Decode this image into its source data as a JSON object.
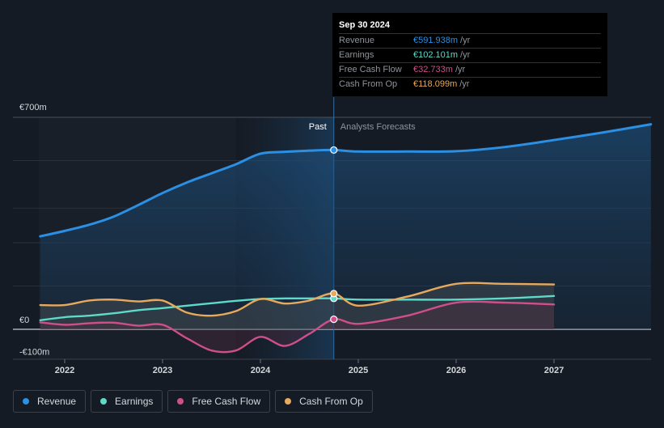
{
  "colors": {
    "revenue": "#2b8fe3",
    "earnings": "#5ddac8",
    "free_cash_flow": "#cf4f8a",
    "cash_from_op": "#e8a95c",
    "background": "#151b24"
  },
  "chart_data": {
    "type": "line",
    "title": "",
    "xlabel": "",
    "ylabel": "",
    "ylim": [
      -100,
      700
    ],
    "y_tick_labels": [
      "€700m",
      "€0",
      "-€100m"
    ],
    "x_tick_labels": [
      "2022",
      "2023",
      "2024",
      "2025",
      "2026",
      "2027"
    ],
    "x_ticks": [
      2022,
      2023,
      2024,
      2025,
      2026,
      2027
    ],
    "xlim": [
      2021.5,
      2027.99
    ],
    "past_label": "Past",
    "forecast_label": "Analysts Forecasts",
    "divider_x": 2024.75,
    "shade_start_x": 2023.75,
    "series": [
      {
        "name": "Revenue",
        "points": [
          [
            2021.75,
            307
          ],
          [
            2022.0,
            325
          ],
          [
            2022.25,
            345
          ],
          [
            2022.5,
            372
          ],
          [
            2022.75,
            410
          ],
          [
            2023.0,
            450
          ],
          [
            2023.25,
            485
          ],
          [
            2023.5,
            515
          ],
          [
            2023.75,
            545
          ],
          [
            2024.0,
            580
          ],
          [
            2024.25,
            586
          ],
          [
            2024.5,
            590
          ],
          [
            2024.75,
            592
          ],
          [
            2025.0,
            587
          ],
          [
            2025.5,
            587
          ],
          [
            2026.0,
            588
          ],
          [
            2026.5,
            602
          ],
          [
            2027.0,
            625
          ],
          [
            2027.5,
            650
          ],
          [
            2027.99,
            677
          ]
        ]
      },
      {
        "name": "Earnings",
        "points": [
          [
            2021.75,
            30
          ],
          [
            2022.0,
            40
          ],
          [
            2022.25,
            45
          ],
          [
            2022.5,
            53
          ],
          [
            2022.75,
            63
          ],
          [
            2023.0,
            70
          ],
          [
            2023.25,
            78
          ],
          [
            2023.5,
            86
          ],
          [
            2023.75,
            94
          ],
          [
            2024.0,
            100
          ],
          [
            2024.25,
            102
          ],
          [
            2024.5,
            102
          ],
          [
            2024.75,
            102
          ],
          [
            2025.0,
            98
          ],
          [
            2025.5,
            98
          ],
          [
            2026.0,
            98
          ],
          [
            2026.5,
            102
          ],
          [
            2027.0,
            110
          ]
        ]
      },
      {
        "name": "Free Cash Flow",
        "points": [
          [
            2021.75,
            23
          ],
          [
            2022.0,
            15
          ],
          [
            2022.25,
            20
          ],
          [
            2022.5,
            22
          ],
          [
            2022.75,
            12
          ],
          [
            2023.0,
            15
          ],
          [
            2023.25,
            -30
          ],
          [
            2023.5,
            -70
          ],
          [
            2023.75,
            -70
          ],
          [
            2024.0,
            -25
          ],
          [
            2024.25,
            -55
          ],
          [
            2024.5,
            -15
          ],
          [
            2024.75,
            33
          ],
          [
            2025.0,
            18
          ],
          [
            2025.5,
            45
          ],
          [
            2026.0,
            88
          ],
          [
            2026.5,
            88
          ],
          [
            2027.0,
            82
          ]
        ]
      },
      {
        "name": "Cash From Op",
        "points": [
          [
            2021.75,
            80
          ],
          [
            2022.0,
            80
          ],
          [
            2022.25,
            95
          ],
          [
            2022.5,
            98
          ],
          [
            2022.75,
            92
          ],
          [
            2023.0,
            95
          ],
          [
            2023.25,
            55
          ],
          [
            2023.5,
            45
          ],
          [
            2023.75,
            60
          ],
          [
            2024.0,
            100
          ],
          [
            2024.25,
            85
          ],
          [
            2024.5,
            95
          ],
          [
            2024.75,
            118
          ],
          [
            2025.0,
            78
          ],
          [
            2025.5,
            108
          ],
          [
            2026.0,
            150
          ],
          [
            2026.5,
            150
          ],
          [
            2027.0,
            148
          ]
        ]
      }
    ],
    "markers": [
      {
        "series": "Revenue",
        "x": 2024.75,
        "y": 592
      },
      {
        "series": "Earnings",
        "x": 2024.75,
        "y": 102
      },
      {
        "series": "Free Cash Flow",
        "x": 2024.75,
        "y": 33
      },
      {
        "series": "Cash From Op",
        "x": 2024.75,
        "y": 118
      }
    ]
  },
  "tooltip": {
    "date": "Sep 30 2024",
    "rows": [
      {
        "label": "Revenue",
        "value": "€591.938m",
        "unit": "/yr",
        "color": "#2b8fe3"
      },
      {
        "label": "Earnings",
        "value": "€102.101m",
        "unit": "/yr",
        "color": "#5ddac8"
      },
      {
        "label": "Free Cash Flow",
        "value": "€32.733m",
        "unit": "/yr",
        "color": "#cf4f8a"
      },
      {
        "label": "Cash From Op",
        "value": "€118.099m",
        "unit": "/yr",
        "color": "#e8a95c"
      }
    ]
  },
  "legend": {
    "items": [
      {
        "label": "Revenue",
        "color": "#2b8fe3"
      },
      {
        "label": "Earnings",
        "color": "#5ddac8"
      },
      {
        "label": "Free Cash Flow",
        "color": "#cf4f8a"
      },
      {
        "label": "Cash From Op",
        "color": "#e8a95c"
      }
    ]
  }
}
